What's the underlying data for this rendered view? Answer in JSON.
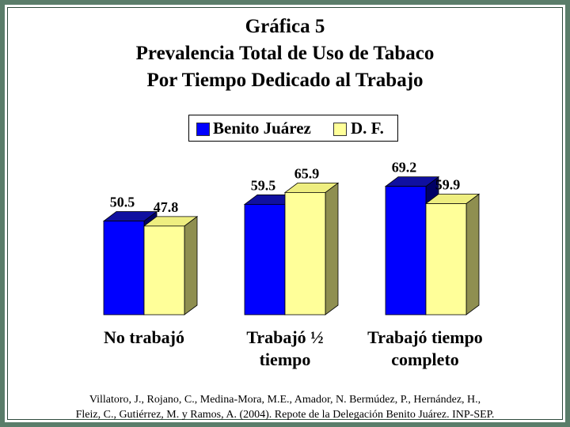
{
  "chart_data": {
    "type": "bar",
    "title": [
      "Gráfica 5",
      "Prevalencia Total de Uso de Tabaco",
      "Por Tiempo Dedicado al Trabajo"
    ],
    "categories": [
      "No trabajó",
      "Trabajó ½ tiempo",
      "Trabajó tiempo completo"
    ],
    "category_lines": [
      [
        "No trabajó"
      ],
      [
        "Trabajó ½",
        "tiempo"
      ],
      [
        "Trabajó tiempo",
        "completo"
      ]
    ],
    "series": [
      {
        "name": "Benito Juárez",
        "values": [
          50.5,
          59.5,
          69.2
        ],
        "color": "#0000ff"
      },
      {
        "name": "D. F.",
        "values": [
          47.8,
          65.9,
          59.9
        ],
        "color": "#ffff99"
      }
    ],
    "value_labels": [
      [
        "50.5",
        "59.5",
        "69.2"
      ],
      [
        "47.8",
        "65.9",
        "59.9"
      ]
    ],
    "legend_position": "top-center",
    "three_d": true,
    "grid": false,
    "ylim": [
      0,
      80
    ]
  },
  "source": {
    "line1": "Villatoro, J., Rojano, C., Medina-Mora, M.E., Amador, N. Bermúdez, P., Hernández, H.,",
    "line2": "Fleiz, C., Gutiérrez, M. y Ramos, A. (2004). Repote de la Delegación Benito Juárez. INP-SEP."
  },
  "colors": {
    "frame": "#5a7d6a",
    "series1_top": "#1010a0",
    "series1_side": "#000066",
    "series2_top": "#eeee80",
    "series2_side": "#8f8f50"
  }
}
